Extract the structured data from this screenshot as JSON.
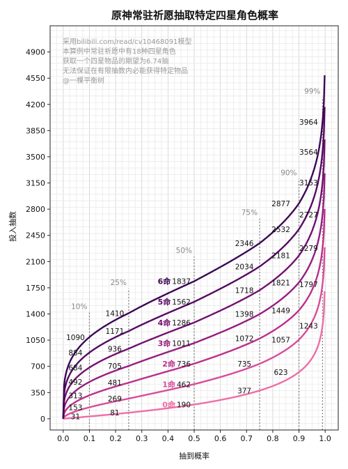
{
  "chart_data": {
    "type": "line",
    "title": "原神常驻祈愿抽取特定四星角色概率",
    "xlabel": "抽到概率",
    "ylabel": "投入抽数",
    "xlim": [
      -0.05,
      1.05
    ],
    "ylim": [
      -150,
      5250
    ],
    "x_ticks": [
      "0.0",
      "0.1",
      "0.2",
      "0.3",
      "0.4",
      "0.5",
      "0.6",
      "0.7",
      "0.8",
      "0.9",
      "1.0"
    ],
    "y_ticks": [
      "0",
      "350",
      "700",
      "1050",
      "1400",
      "1750",
      "2100",
      "2450",
      "2800",
      "3150",
      "3500",
      "3850",
      "4200",
      "4550",
      "4900"
    ],
    "grid": true,
    "notes": [
      "采用bilibili.com/read/cv10468091模型",
      "本算例中常驻祈愿中有18种四星角色",
      "获取一个四星物品的期望为6.74抽",
      "无法保证在有限抽数内必能获得特定物品",
      "@一棵平衡树"
    ],
    "percent_markers": [
      {
        "x": 0.1,
        "label": "10%"
      },
      {
        "x": 0.25,
        "label": "25%"
      },
      {
        "x": 0.5,
        "label": "50%"
      },
      {
        "x": 0.75,
        "label": "75%"
      },
      {
        "x": 0.9,
        "label": "90%"
      },
      {
        "x": 0.99,
        "label": "99%"
      }
    ],
    "series": [
      {
        "name": "0命",
        "color": "#ee6ea6",
        "values": [
          31,
          81,
          190,
          377,
          623,
          1243
        ]
      },
      {
        "name": "1命",
        "color": "#d84c9a",
        "values": [
          153,
          269,
          462,
          735,
          1057,
          1797
        ]
      },
      {
        "name": "2命",
        "color": "#bb2f8c",
        "values": [
          313,
          481,
          736,
          1072,
          1449,
          2279
        ]
      },
      {
        "name": "3命",
        "color": "#951e80",
        "values": [
          492,
          705,
          1011,
          1398,
          1821,
          2727
        ]
      },
      {
        "name": "4命",
        "color": "#72106f",
        "values": [
          684,
          936,
          1286,
          1718,
          2181,
          3153
        ]
      },
      {
        "name": "5命",
        "color": "#540a62",
        "values": [
          884,
          1171,
          1562,
          2034,
          2532,
          3564
        ]
      },
      {
        "name": "6命",
        "color": "#3b0754",
        "values": [
          1090,
          1410,
          1837,
          2346,
          2877,
          3964
        ]
      }
    ]
  }
}
